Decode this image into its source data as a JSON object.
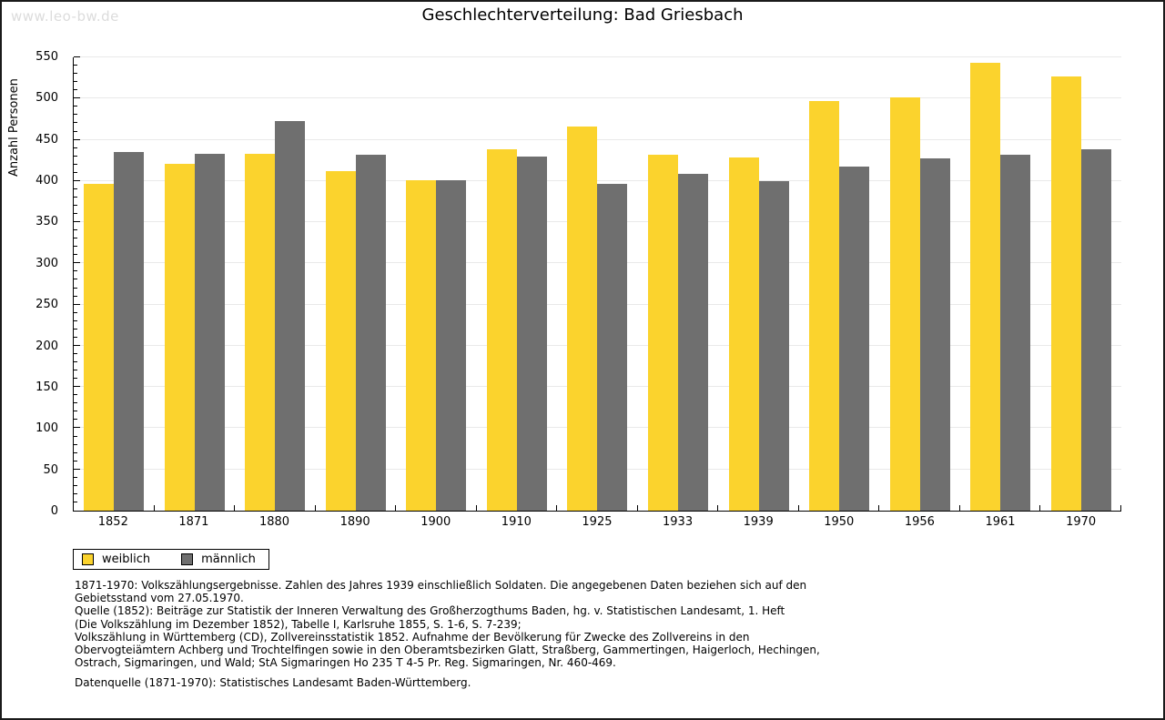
{
  "watermark": "www.leo-bw.de",
  "title": "Geschlechterverteilung: Bad Griesbach",
  "chart_data": {
    "type": "bar",
    "title": "Geschlechterverteilung: Bad Griesbach",
    "xlabel": "",
    "ylabel": "Anzahl Personen",
    "ylim": [
      0,
      550
    ],
    "ytick_step": 50,
    "minor_tick_step": 10,
    "grid": true,
    "legend_position": "bottom-left",
    "categories": [
      "1852",
      "1871",
      "1880",
      "1890",
      "1900",
      "1910",
      "1925",
      "1933",
      "1939",
      "1950",
      "1956",
      "1961",
      "1970"
    ],
    "series": [
      {
        "name": "weiblich",
        "color": "#fbd32d",
        "values": [
          396,
          421,
          433,
          412,
          401,
          438,
          466,
          432,
          429,
          497,
          501,
          543,
          527
        ]
      },
      {
        "name": "männlich",
        "color": "#6f6f6f",
        "values": [
          435,
          433,
          473,
          432,
          401,
          430,
          397,
          409,
          400,
          418,
          427,
          432,
          438
        ]
      }
    ]
  },
  "legend": {
    "items": [
      {
        "label": "weiblich",
        "color": "#fbd32d"
      },
      {
        "label": "männlich",
        "color": "#6f6f6f"
      }
    ]
  },
  "footnotes": {
    "lines": [
      "1871-1970: Volkszählungsergebnisse. Zahlen des Jahres 1939 einschließlich Soldaten. Die angegebenen Daten beziehen sich auf den",
      "Gebietsstand vom 27.05.1970.",
      "Quelle (1852): Beiträge zur Statistik der Inneren Verwaltung des Großherzogthums Baden, hg. v. Statistischen Landesamt, 1. Heft",
      "(Die Volkszählung im Dezember 1852), Tabelle I, Karlsruhe 1855, S. 1-6, S. 7-239;",
      "Volkszählung in Württemberg (CD), Zollvereinsstatistik 1852. Aufnahme der Bevölkerung für Zwecke des Zollvereins in den",
      "Obervogteiämtern Achberg und Trochtelfingen sowie in den Oberamtsbezirken Glatt, Straßberg, Gammertingen, Haigerloch, Hechingen,",
      "Ostrach, Sigmaringen, und Wald; StA Sigmaringen Ho 235 T 4-5 Pr. Reg. Sigmaringen, Nr. 460-469."
    ],
    "datasource": "Datenquelle (1871-1970): Statistisches Landesamt Baden-Württemberg."
  },
  "colors": {
    "frame_border": "#1a1a1a",
    "gridline": "#e9e9e9",
    "watermark": "#dcdcdc",
    "bar_weiblich": "#fbd32d",
    "bar_maennlich": "#6f6f6f"
  }
}
